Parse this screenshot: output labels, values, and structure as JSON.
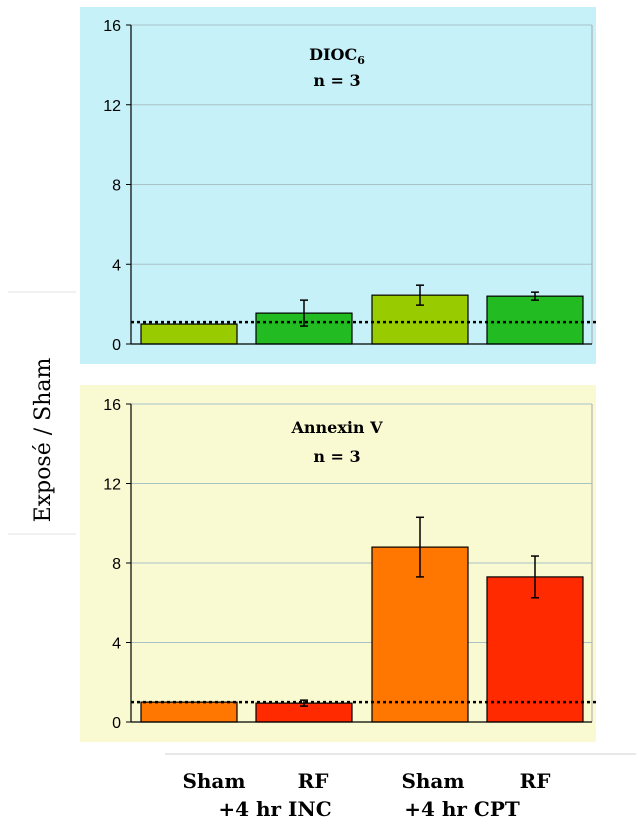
{
  "figure": {
    "ylabel": "Exposé / Sham",
    "categories": [
      "Sham",
      "RF",
      "Sham",
      "RF"
    ],
    "groups": [
      "+4 hr INC",
      "+4 hr CPT"
    ],
    "background_colors": [
      "#c6f1f8",
      "#fafad2"
    ]
  },
  "chart_data": [
    {
      "type": "bar",
      "title": "",
      "annotation": {
        "label": "DIOC",
        "subscript": "6",
        "n": "n = 3"
      },
      "categories": [
        "Sham",
        "RF",
        "Sham",
        "RF"
      ],
      "values": [
        1.0,
        1.55,
        2.45,
        2.4
      ],
      "errors": [
        0.0,
        0.65,
        0.5,
        0.2
      ],
      "colors": [
        "#99cc00",
        "#22bb22",
        "#99cc00",
        "#22bb22"
      ],
      "reference_line": 1.1,
      "ylim": [
        0,
        16
      ],
      "yticks": [
        0,
        4,
        8,
        12,
        16
      ],
      "grid": true,
      "xlabel": "",
      "ylabel": "Exposé / Sham"
    },
    {
      "type": "bar",
      "title": "",
      "annotation": {
        "label": "Annexin V",
        "subscript": "",
        "n": "n = 3"
      },
      "categories": [
        "Sham",
        "RF",
        "Sham",
        "RF"
      ],
      "values": [
        1.0,
        0.95,
        8.8,
        7.3
      ],
      "errors": [
        0.0,
        0.15,
        1.5,
        1.05
      ],
      "colors": [
        "#ff7700",
        "#ff2a00",
        "#ff7700",
        "#ff2a00"
      ],
      "reference_line": 1.0,
      "ylim": [
        0,
        16
      ],
      "yticks": [
        0,
        4,
        8,
        12,
        16
      ],
      "grid": true,
      "xlabel": "",
      "ylabel": "Exposé / Sham"
    }
  ]
}
